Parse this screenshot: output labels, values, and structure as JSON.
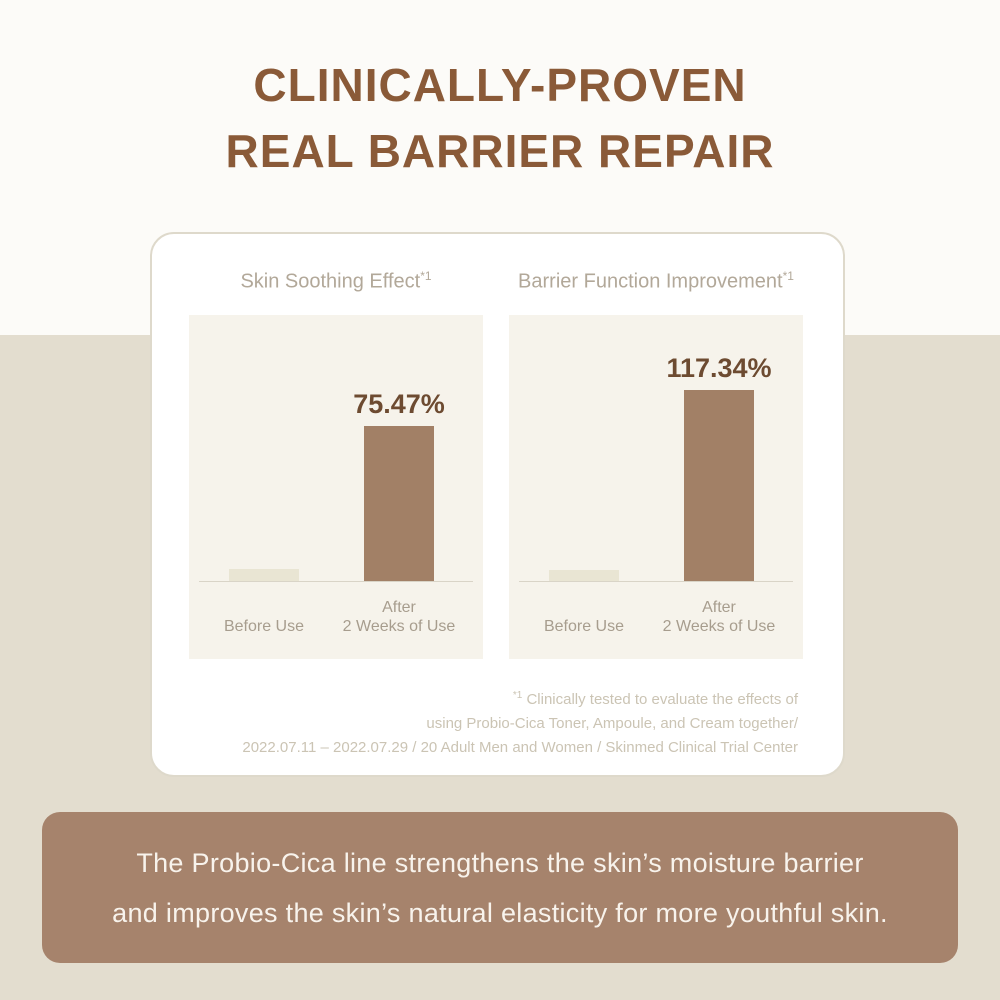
{
  "colors": {
    "page_top_bg": "#fcfbf8",
    "page_bottom_bg": "#e3ddcf",
    "title_brown": "#8a5a38",
    "card_bg": "#ffffff",
    "card_border": "#ded9cb",
    "panel_bg": "#f6f3eb",
    "chart_title_color": "#b2a899",
    "value_label_color": "#6d4b31",
    "bar_after_color": "#a28066",
    "bar_before_color": "#e9e5d3",
    "axis_line_color": "#d9d4c7",
    "axis_label_color": "#a79d8e",
    "footnote_color": "#cbc4b4",
    "banner_bg": "#a6836c",
    "banner_text_color": "#f8f3ec"
  },
  "header": {
    "title_line1": "CLINICALLY-PROVEN",
    "title_line2": "REAL BARRIER REPAIR"
  },
  "chart_data": [
    {
      "type": "bar",
      "title": "Skin Soothing Effect",
      "title_sup": "*1",
      "categories": [
        [
          "Before Use"
        ],
        [
          "After",
          "2 Weeks of Use"
        ]
      ],
      "values": [
        5.8,
        75.47
      ],
      "value_labels": [
        "",
        "75.47%"
      ],
      "unit": "%",
      "ylim": [
        0,
        80
      ],
      "grid": false,
      "legend": "none"
    },
    {
      "type": "bar",
      "title": "Barrier Function Improvement",
      "title_sup": "*1",
      "categories": [
        [
          "Before Use"
        ],
        [
          "After",
          "2 Weeks of Use"
        ]
      ],
      "values": [
        6.7,
        117.34
      ],
      "value_labels": [
        "",
        "117.34%"
      ],
      "unit": "%",
      "ylim": [
        0,
        125
      ],
      "grid": false,
      "legend": "none"
    }
  ],
  "footnote": {
    "sup": "*1",
    "line1": " Clinically tested to evaluate the effects of",
    "line2": "using Probio-Cica Toner, Ampoule, and Cream together/",
    "line3": "2022.07.11 – 2022.07.29 / 20 Adult Men and Women / Skinmed Clinical Trial Center"
  },
  "banner": {
    "line1": "The Probio-Cica line strengthens the skin’s moisture barrier",
    "line2": "and improves the skin’s natural elasticity for more youthful skin."
  }
}
